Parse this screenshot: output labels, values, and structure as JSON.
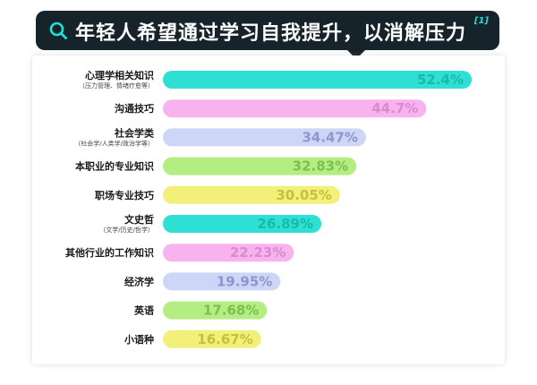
{
  "header": {
    "title": "年轻人希望通过学习自我提升，以消解压力",
    "footnote": "[1]"
  },
  "colors": {
    "banner_bg": "#16232b",
    "accent": "#1ee0d2",
    "series_palette": [
      "#2ee0d4",
      "#f8b3ee",
      "#cdd6f7",
      "#b4ee82",
      "#f2f07a"
    ],
    "value_palette": [
      "#1ab8ad",
      "#d98ad0",
      "#8d97c9",
      "#7cbf4e",
      "#c4c23a"
    ]
  },
  "chart_data": {
    "type": "bar",
    "orientation": "horizontal",
    "title": "年轻人希望通过学习自我提升，以消解压力",
    "xlabel": "",
    "ylabel": "",
    "xlim": [
      0,
      52.4
    ],
    "grid": false,
    "legend": "none",
    "categories": [
      "心理学相关知识",
      "沟通技巧",
      "社会学类",
      "本职业的专业知识",
      "职场专业技巧",
      "文史哲",
      "其他行业的工作知识",
      "经济学",
      "英语",
      "小语种"
    ],
    "subtitles": [
      "（压力管理、情绪疗愈等）",
      "",
      "（社会学/人类学/政治学等）",
      "",
      "",
      "（文学/历史/哲学）",
      "",
      "",
      "",
      ""
    ],
    "values": [
      52.4,
      44.7,
      34.47,
      32.83,
      30.05,
      26.89,
      22.23,
      19.95,
      17.68,
      16.67
    ],
    "value_labels": [
      "52.4%",
      "44.7%",
      "34.47%",
      "32.83%",
      "30.05%",
      "26.89%",
      "22.23%",
      "19.95%",
      "17.68%",
      "16.67%"
    ]
  }
}
